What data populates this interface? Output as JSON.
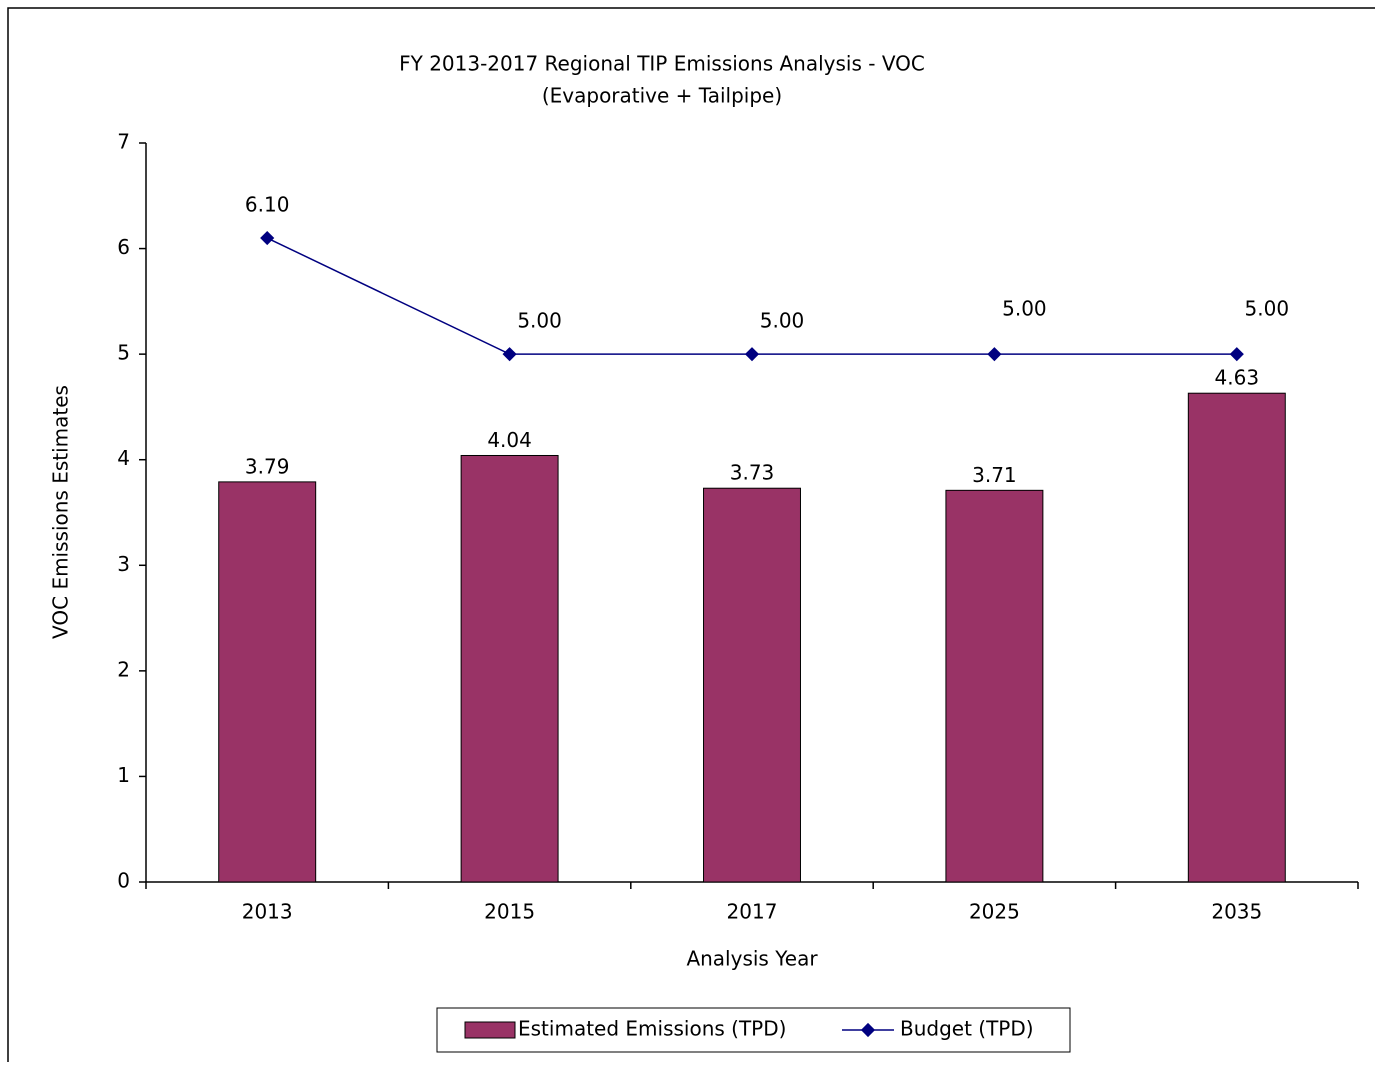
{
  "chart_data": {
    "type": "bar",
    "title": "FY 2013-2017 Regional TIP Emissions Analysis - VOC",
    "subtitle": "(Evaporative + Tailpipe)",
    "x_label": "Analysis Year",
    "y_label": "VOC Emissions Estimates",
    "categories": [
      "2013",
      "2015",
      "2017",
      "2025",
      "2035"
    ],
    "series": [
      {
        "name": "Estimated Emissions (TPD)",
        "type": "bar",
        "color": "#993366",
        "values": [
          3.79,
          4.04,
          3.73,
          3.71,
          4.63
        ]
      },
      {
        "name": "Budget (TPD)",
        "type": "line",
        "color": "#000080",
        "values": [
          6.1,
          5.0,
          5.0,
          5.0,
          5.0
        ],
        "value_labels": [
          "6.10",
          "5.00",
          "5.00",
          "5.00",
          "5.00"
        ]
      }
    ],
    "ylim": [
      0,
      7
    ],
    "yticks": [
      0,
      1,
      2,
      3,
      4,
      5,
      6,
      7
    ],
    "legend": "bottom"
  }
}
